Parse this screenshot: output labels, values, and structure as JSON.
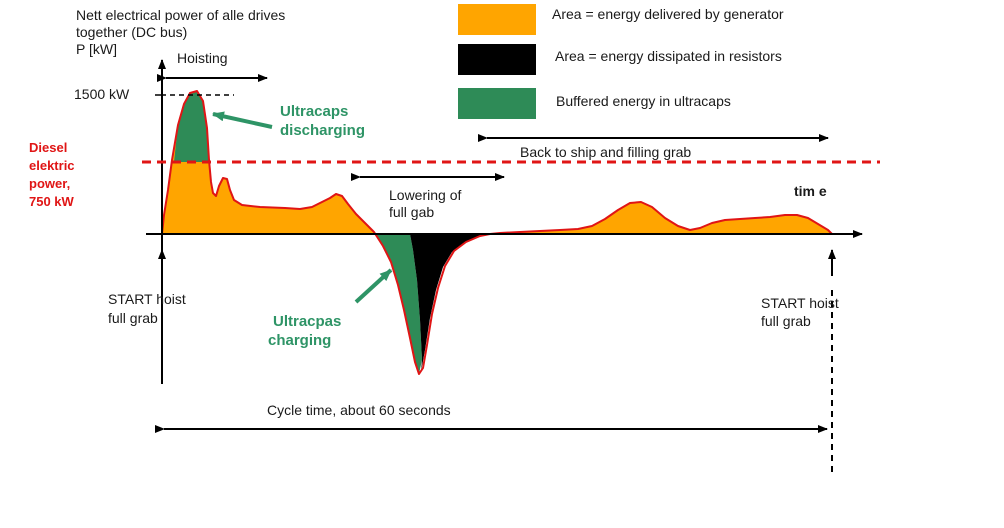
{
  "colors": {
    "generator": "#ffa500",
    "resistors": "#000000",
    "ultracaps": "#2e8b57",
    "curve": "#e01515",
    "diesel_line": "#e01515",
    "annotation_green": "#2e9466"
  },
  "y_axis": {
    "label_line1": "Nett electrical power of alle drives",
    "label_line2": "together (DC bus)",
    "label_line3": "P [kW]",
    "tick_1500": "1500 kW"
  },
  "x_axis": {
    "label": "tim e"
  },
  "legend": [
    {
      "text": "Area = energy delivered by generator",
      "color": "#ffa500"
    },
    {
      "text": "Area = energy dissipated in resistors",
      "color": "#000000"
    },
    {
      "text": "Buffered energy in ultracaps",
      "color": "#2e8b57"
    }
  ],
  "diesel": {
    "line1": "Diesel",
    "line2": "elektric",
    "line3": "power,",
    "line4": "750  kW"
  },
  "phases": {
    "hoisting": "Hoisting",
    "lowering_line1": "Lowering of",
    "lowering_line2": "full gab",
    "back": "Back to ship and filling grab"
  },
  "annotations": {
    "discharging_line1": "Ultracaps",
    "discharging_line2": "discharging",
    "charging_line1": "Ultracpas",
    "charging_line2": "charging"
  },
  "start_left_line1": "START hoist",
  "start_left_line2": "full grab",
  "start_right_line1": "START hoist",
  "start_right_line2": "full grab",
  "cycle_time": "Cycle time, about 60 seconds"
}
